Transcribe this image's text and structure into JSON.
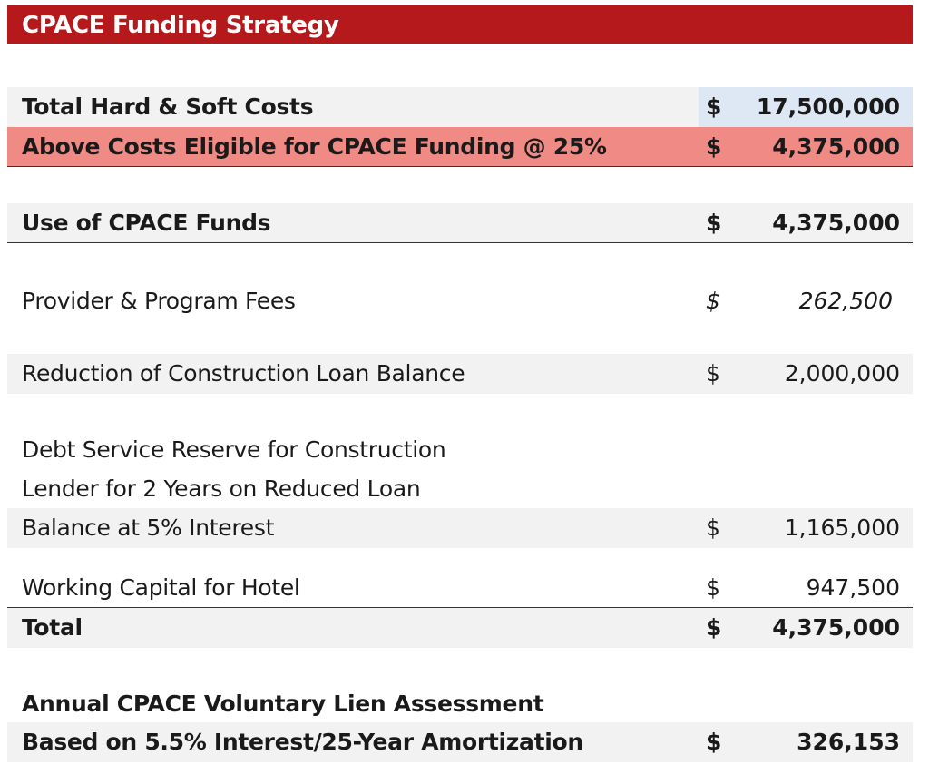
{
  "title": "CPACE Funding Strategy",
  "total_costs": {
    "label": "Total Hard & Soft Costs",
    "currency": "$",
    "amount": "17,500,000"
  },
  "eligible": {
    "label": "Above Costs Eligible for CPACE Funding @ 25%",
    "currency": "$",
    "amount": "4,375,000"
  },
  "use_of_funds": {
    "label": "Use of CPACE Funds",
    "currency": "$",
    "amount": "4,375,000"
  },
  "items": [
    {
      "label": "Provider & Program Fees",
      "currency": "$",
      "amount": "262,500"
    },
    {
      "label": "Reduction of Construction Loan Balance",
      "currency": "$",
      "amount": "2,000,000"
    },
    {
      "label_lines": [
        "Debt Service Reserve for Construction",
        "Lender for 2 Years on Reduced Loan",
        "Balance at 5% Interest"
      ],
      "currency": "$",
      "amount": "1,165,000"
    },
    {
      "label": "Working Capital for Hotel",
      "currency": "$",
      "amount": "947,500"
    }
  ],
  "total": {
    "label": "Total",
    "currency": "$",
    "amount": "4,375,000"
  },
  "assessment": {
    "label_lines": [
      "Annual CPACE Voluntary Lien Assessment",
      "Based on 5.5% Interest/25-Year Amortization"
    ],
    "currency": "$",
    "amount": "326,153"
  }
}
